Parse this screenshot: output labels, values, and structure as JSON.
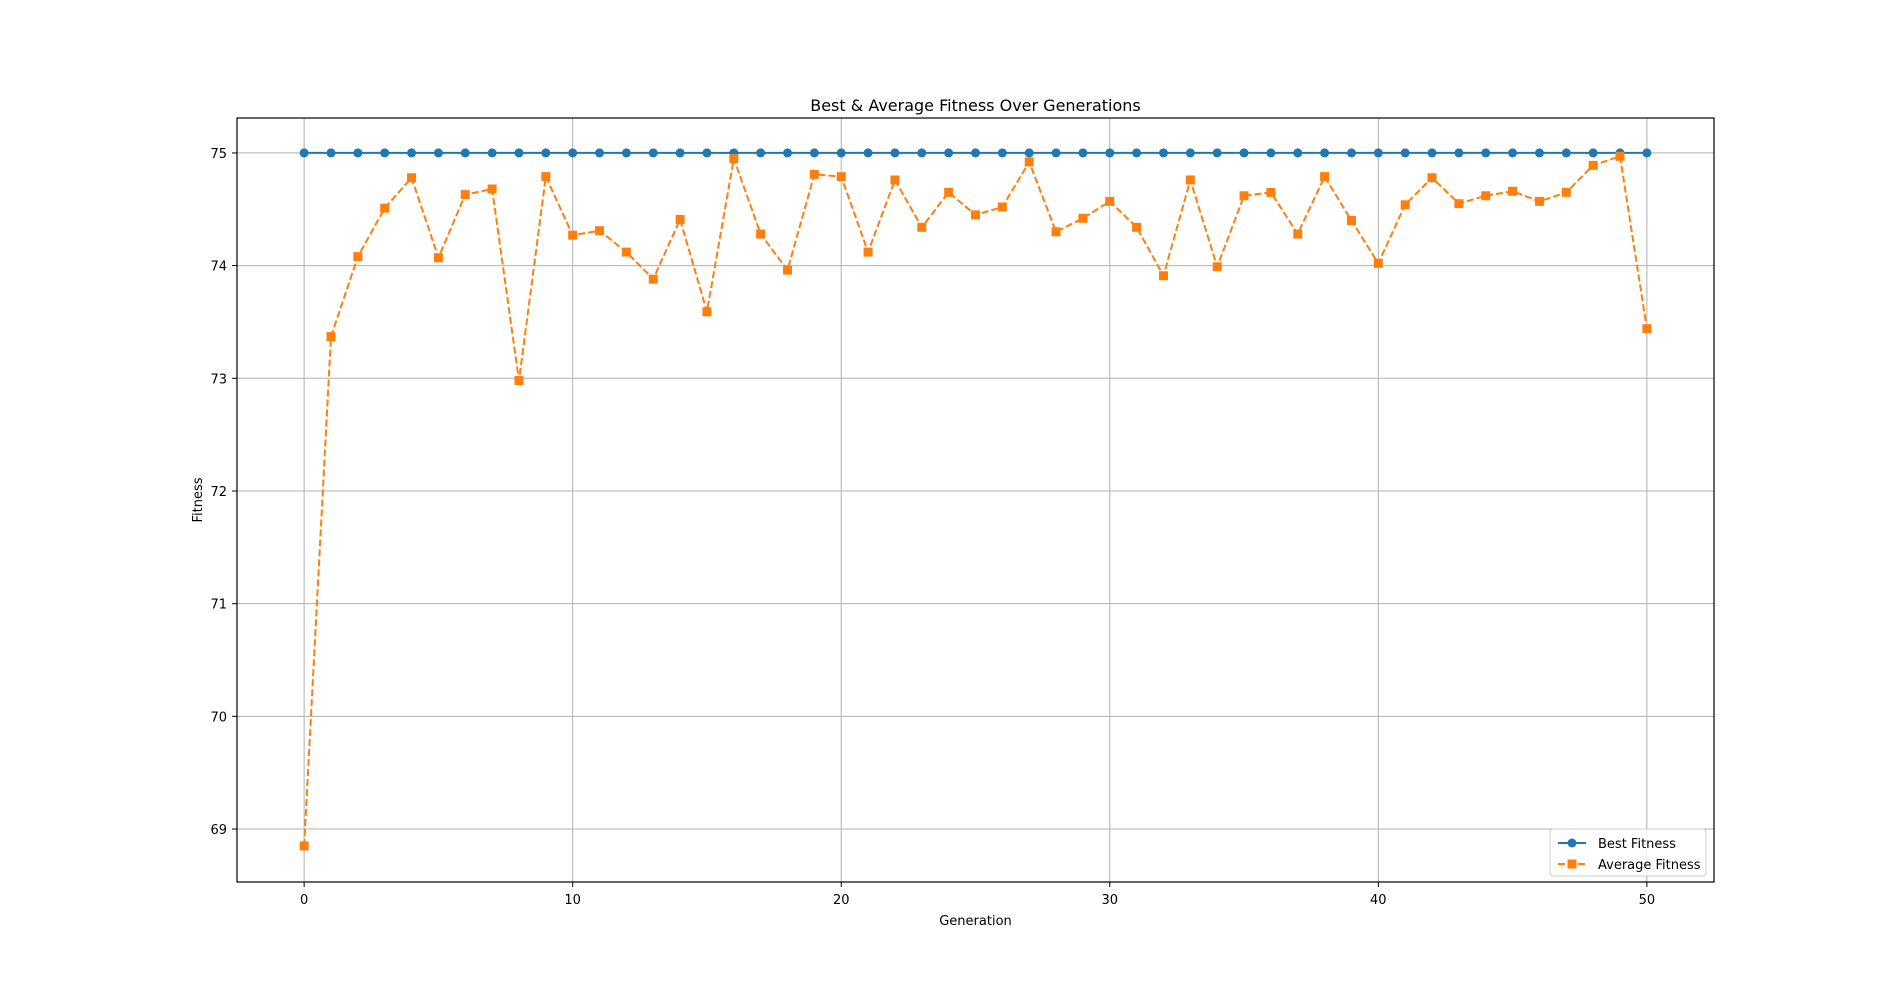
{
  "chart_data": {
    "type": "line",
    "title": "Best & Average Fitness Over Generations",
    "xlabel": "Generation",
    "ylabel": "Fitness",
    "xlim": [
      -2.5,
      52.5
    ],
    "ylim": [
      68.53,
      75.31
    ],
    "xticks": [
      0,
      10,
      20,
      30,
      40,
      50
    ],
    "yticks": [
      69,
      70,
      71,
      72,
      73,
      74,
      75
    ],
    "grid": true,
    "legend": "bottom-right",
    "x": [
      0,
      1,
      2,
      3,
      4,
      5,
      6,
      7,
      8,
      9,
      10,
      11,
      12,
      13,
      14,
      15,
      16,
      17,
      18,
      19,
      20,
      21,
      22,
      23,
      24,
      25,
      26,
      27,
      28,
      29,
      30,
      31,
      32,
      33,
      34,
      35,
      36,
      37,
      38,
      39,
      40,
      41,
      42,
      43,
      44,
      45,
      46,
      47,
      48,
      49,
      50
    ],
    "series": [
      {
        "name": "Best Fitness",
        "color": "#1f77b4",
        "marker": "circle",
        "linestyle": "solid",
        "values": [
          75,
          75,
          75,
          75,
          75,
          75,
          75,
          75,
          75,
          75,
          75,
          75,
          75,
          75,
          75,
          75,
          75,
          75,
          75,
          75,
          75,
          75,
          75,
          75,
          75,
          75,
          75,
          75,
          75,
          75,
          75,
          75,
          75,
          75,
          75,
          75,
          75,
          75,
          75,
          75,
          75,
          75,
          75,
          75,
          75,
          75,
          75,
          75,
          75,
          75,
          75
        ]
      },
      {
        "name": "Average Fitness",
        "color": "#ff7f0e",
        "marker": "square",
        "linestyle": "dashed",
        "values": [
          68.85,
          73.37,
          74.08,
          74.51,
          74.78,
          74.07,
          74.63,
          74.68,
          72.98,
          74.79,
          74.27,
          74.31,
          74.12,
          73.88,
          74.41,
          73.59,
          74.95,
          74.28,
          73.96,
          74.81,
          74.79,
          74.12,
          74.76,
          74.34,
          74.65,
          74.45,
          74.52,
          74.92,
          74.3,
          74.42,
          74.57,
          74.34,
          73.91,
          74.76,
          73.99,
          74.62,
          74.65,
          74.28,
          74.79,
          74.4,
          74.02,
          74.54,
          74.78,
          74.55,
          74.62,
          74.66,
          74.57,
          74.65,
          74.89,
          74.97,
          73.44
        ]
      }
    ]
  }
}
